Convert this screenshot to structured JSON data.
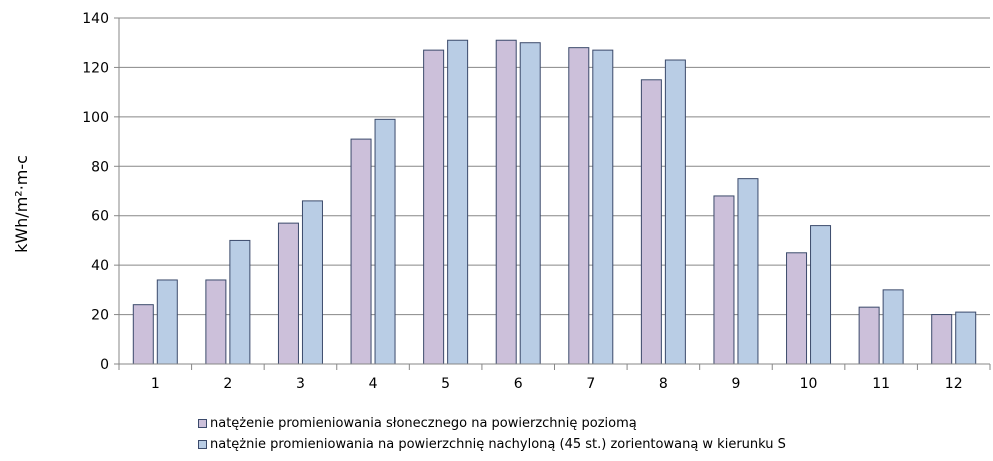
{
  "chart_data": {
    "type": "bar",
    "categories": [
      "1",
      "2",
      "3",
      "4",
      "5",
      "6",
      "7",
      "8",
      "9",
      "10",
      "11",
      "12"
    ],
    "series": [
      {
        "name": "natężenie promieniowania słonecznego na powierzchnię poziomą",
        "values": [
          24,
          34,
          57,
          91,
          127,
          131,
          128,
          115,
          68,
          45,
          23,
          20
        ],
        "color": "#ccc0da"
      },
      {
        "name": "natężnie promieniowania na powierzchnię nachyloną (45 st.) zorientowaną w kierunku S",
        "values": [
          34,
          50,
          66,
          99,
          131,
          130,
          127,
          123,
          75,
          56,
          30,
          21
        ],
        "color": "#b9cde5"
      }
    ],
    "y_ticks": [
      "0",
      "20",
      "40",
      "60",
      "80",
      "100",
      "120",
      "140"
    ],
    "ylim": [
      0,
      140
    ],
    "ylabel": "kWh/m²·m-c",
    "xlabel": "",
    "title": "",
    "grid": true,
    "legend_position": "bottom",
    "bar_outline_color": "#3b4a6b"
  }
}
